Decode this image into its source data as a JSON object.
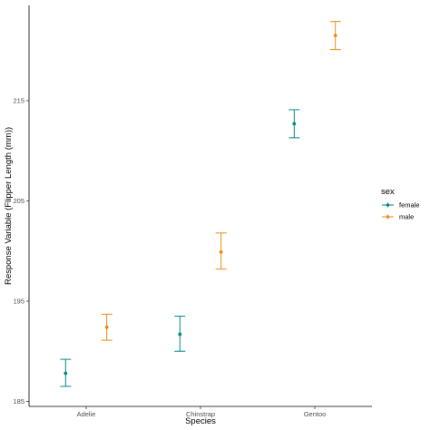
{
  "chart_data": {
    "type": "scatter",
    "style": "point-range with error bars",
    "xlabel": "Species",
    "ylabel": "Response Variable (Flipper Length (mm))",
    "categories": [
      "Adelie",
      "Chinstrap",
      "Gentoo"
    ],
    "ylim": [
      184.5,
      224.5
    ],
    "yticks": [
      185,
      195,
      205,
      215
    ],
    "grid": false,
    "legend": {
      "title": "sex",
      "position": "right"
    },
    "series": [
      {
        "name": "female",
        "color": "#00868B",
        "values": [
          187.8,
          191.7,
          212.7
        ],
        "lower": [
          186.5,
          190.0,
          211.3
        ],
        "upper": [
          189.2,
          193.5,
          214.1
        ]
      },
      {
        "name": "male",
        "color": "#EE8A12",
        "values": [
          192.4,
          199.9,
          221.5
        ],
        "lower": [
          191.1,
          198.2,
          220.1
        ],
        "upper": [
          193.7,
          201.8,
          222.9
        ]
      }
    ]
  }
}
